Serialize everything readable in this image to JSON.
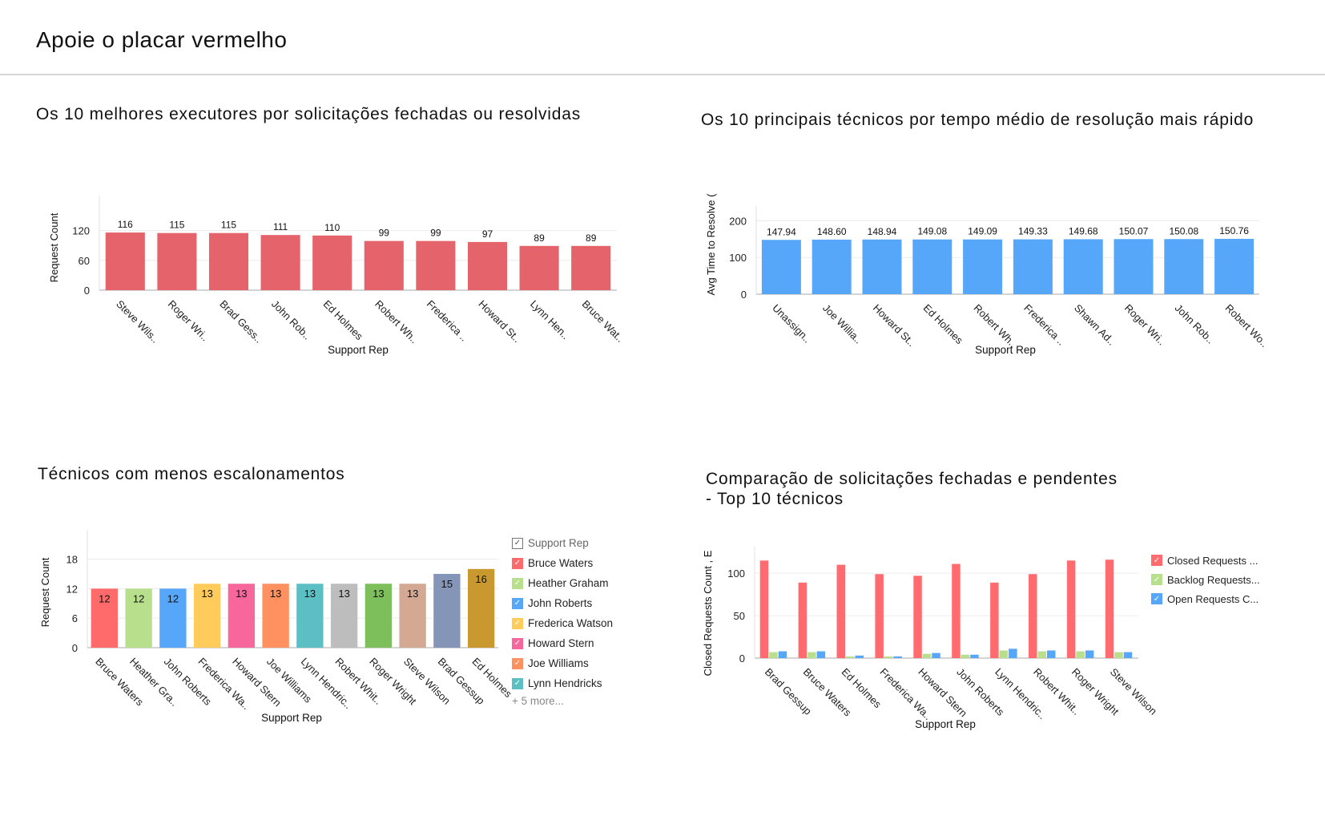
{
  "page": {
    "title": "Apoie o placar vermelho"
  },
  "chart_data": [
    {
      "type": "bar",
      "title": "Os 10 melhores executores por solicitações fechadas ou resolvidas",
      "xlabel": "Support Rep",
      "ylabel": "Request Count",
      "ylim": [
        0,
        171
      ],
      "yticks": [
        0,
        60,
        120
      ],
      "color": "#e5636b",
      "categories": [
        "Steve Wils..",
        "Roger Wri..",
        "Brad Gess..",
        "John Rob..",
        "Ed Holmes",
        "Robert Wh..",
        "Frederica ..",
        "Howard St..",
        "Lynn Hen..",
        "Bruce Wat.."
      ],
      "values": [
        116,
        115,
        115,
        111,
        110,
        99,
        99,
        97,
        89,
        89
      ],
      "value_labels": [
        "116",
        "115",
        "115",
        "111",
        "110",
        "99",
        "99",
        "97",
        "89",
        "89"
      ]
    },
    {
      "type": "bar",
      "title": "Os 10 principais técnicos por tempo médio de resolução mais rápido",
      "xlabel": "Support Rep",
      "ylabel": "Avg Time to Resolve (",
      "ylim": [
        0,
        214
      ],
      "yticks": [
        0,
        100,
        200
      ],
      "color": "#56a7f9",
      "categories": [
        "Unassign..",
        "Joe Willia..",
        "Howard St..",
        "Ed Holmes",
        "Robert Wh..",
        "Frederica ..",
        "Shawn Ad..",
        "Roger Wri..",
        "John Rob..",
        "Robert Wo.."
      ],
      "values": [
        147.94,
        148.6,
        148.94,
        149.08,
        149.09,
        149.33,
        149.68,
        150.07,
        150.08,
        150.76
      ],
      "value_labels": [
        "147.94",
        "148.60",
        "148.94",
        "149.08",
        "149.09",
        "149.33",
        "149.68",
        "150.07",
        "150.08",
        "150.76"
      ]
    },
    {
      "type": "bar",
      "title": "Técnicos com menos escalonamentos",
      "xlabel": "Support Rep",
      "ylabel": "Request Count",
      "ylim": [
        0,
        22
      ],
      "yticks": [
        0,
        6,
        12,
        18
      ],
      "categories": [
        "Bruce Waters",
        "Heather Gra..",
        "John Roberts",
        "Frederica Wa..",
        "Howard Stern",
        "Joe Williams",
        "Lynn Hendric..",
        "Robert Whit..",
        "Roger Wright",
        "Steve Wilson",
        "Brad Gessup",
        "Ed Holmes"
      ],
      "values": [
        12,
        12,
        12,
        13,
        13,
        13,
        13,
        13,
        13,
        13,
        15,
        16
      ],
      "value_labels": [
        "12",
        "12",
        "12",
        "13",
        "13",
        "13",
        "13",
        "13",
        "13",
        "13",
        "15",
        "16"
      ],
      "colors": [
        "#ff6b6b",
        "#b8e08c",
        "#56a7f9",
        "#ffcc5c",
        "#f7679c",
        "#ff9160",
        "#5bbfc4",
        "#bdbdbd",
        "#7dbf5a",
        "#d4a994",
        "#8595b8",
        "#c9992f"
      ],
      "legend": {
        "title": "Support Rep",
        "items": [
          "Bruce Waters",
          "Heather Graham",
          "John Roberts",
          "Frederica Watson",
          "Howard Stern",
          "Joe Williams",
          "Lynn Hendricks"
        ],
        "more": "+ 5 more..."
      }
    },
    {
      "type": "bar",
      "title": "Comparação de solicitações fechadas e pendentes - Top 10 técnicos",
      "title_lines": [
        "Comparação de solicitações fechadas e pendentes",
        "- Top 10 técnicos"
      ],
      "xlabel": "Support Rep",
      "ylabel": "Closed Requests Count , E",
      "ylim": [
        0,
        120
      ],
      "yticks": [
        0,
        50,
        100
      ],
      "categories": [
        "Brad Gessup",
        "Bruce Waters",
        "Ed Holmes",
        "Frederica Wa..",
        "Howard Stern",
        "John Roberts",
        "Lynn Hendric..",
        "Robert Whit..",
        "Roger Wright",
        "Steve Wilson"
      ],
      "series": [
        {
          "name": "Closed Requests ...",
          "color": "#ff6b6e",
          "values": [
            115,
            89,
            110,
            99,
            97,
            111,
            89,
            99,
            115,
            116
          ]
        },
        {
          "name": "Backlog Requests...",
          "color": "#b8e08c",
          "values": [
            7,
            7,
            2,
            2,
            5,
            4,
            9,
            8,
            8,
            7
          ]
        },
        {
          "name": "Open Requests C...",
          "color": "#56a7f9",
          "values": [
            8,
            8,
            3,
            2,
            6,
            4,
            11,
            9,
            9,
            7
          ]
        }
      ],
      "legend_position": "right"
    }
  ]
}
